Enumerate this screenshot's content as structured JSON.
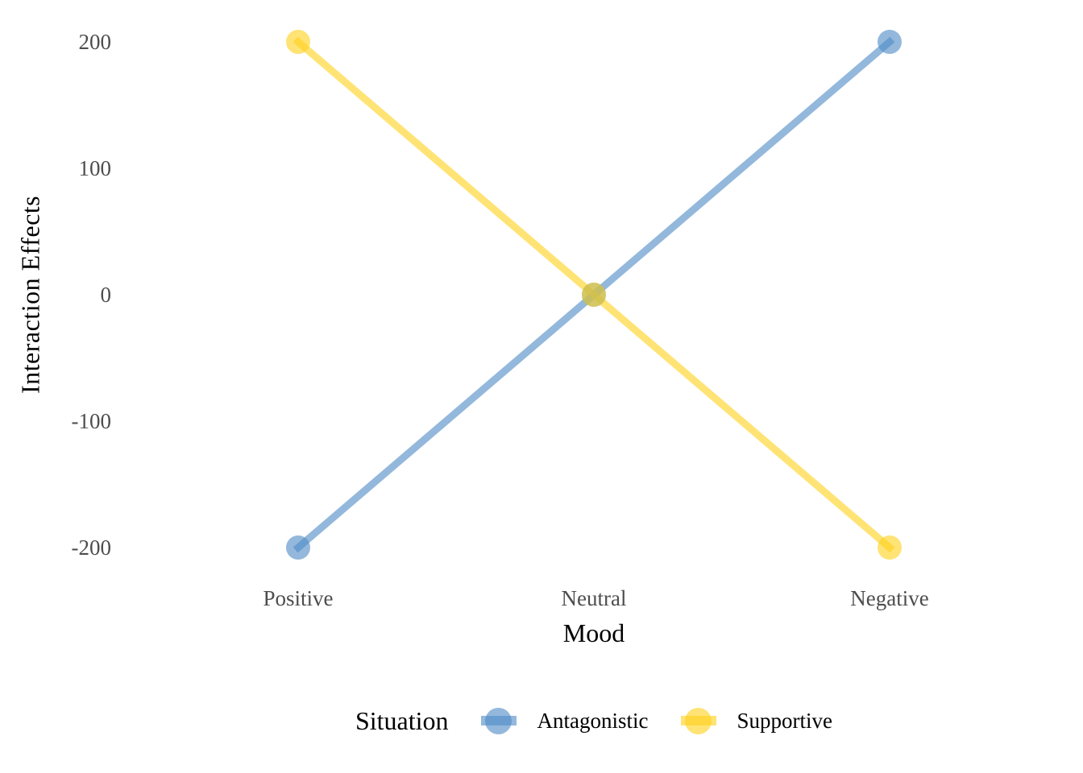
{
  "chart_data": {
    "type": "line",
    "title": "",
    "categories": [
      "Positive",
      "Neutral",
      "Negative"
    ],
    "xlabel": "Mood",
    "ylabel": "Interaction Effects",
    "yticks": [
      200,
      100,
      0,
      -100,
      -200
    ],
    "ylim": [
      -200,
      200
    ],
    "grid": false,
    "axis_lines": false,
    "background": "#ffffff",
    "tick_label_color": "#4d4d4d",
    "series": [
      {
        "name": "Antagonistic",
        "values": [
          -200,
          0,
          200
        ],
        "color": "#508CC6"
      },
      {
        "name": "Supportive",
        "values": [
          200,
          0,
          -200
        ],
        "color": "#FFD21F"
      }
    ],
    "opacity": 0.62,
    "legend": {
      "title": "Situation",
      "position": "bottom"
    }
  }
}
